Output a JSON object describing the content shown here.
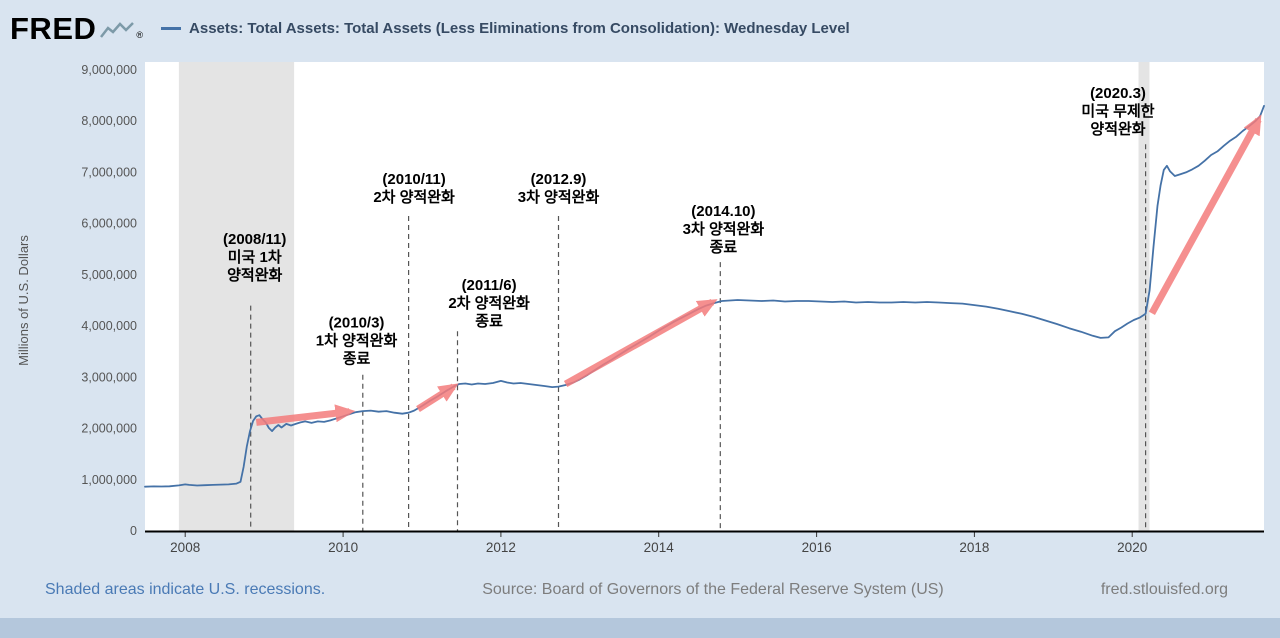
{
  "header": {
    "logo_text": "FRED",
    "registered_mark": "®"
  },
  "footer": {
    "recessions_note": "Shaded areas indicate U.S. recessions.",
    "source": "Source: Board of Governors of the Federal Reserve System (US)",
    "site": "fred.stlouisfed.org"
  },
  "chart_data": {
    "type": "line",
    "title": "",
    "xlabel": "",
    "ylabel": "Millions of U.S. Dollars",
    "x_range": [
      2007.49,
      2021.67
    ],
    "y_range": [
      0,
      9000000
    ],
    "x_ticks": [
      2008,
      2010,
      2012,
      2014,
      2016,
      2018,
      2020
    ],
    "y_ticks": [
      0,
      1000000,
      2000000,
      3000000,
      4000000,
      5000000,
      6000000,
      7000000,
      8000000,
      9000000
    ],
    "grid": false,
    "legend_position": "top",
    "line_color": "#4572a7",
    "recession_color": "#e4e4e4",
    "arrow_color": "#f47c7c",
    "recessions": [
      {
        "start": 2007.92,
        "end": 2009.38
      },
      {
        "start": 2020.08,
        "end": 2020.22
      }
    ],
    "series": [
      {
        "name": "Assets: Total Assets: Total Assets (Less Eliminations from Consolidation): Wednesday Level",
        "points": [
          [
            2007.49,
            865000
          ],
          [
            2007.6,
            870000
          ],
          [
            2007.7,
            868000
          ],
          [
            2007.8,
            873000
          ],
          [
            2007.92,
            890000
          ],
          [
            2008.0,
            910000
          ],
          [
            2008.05,
            900000
          ],
          [
            2008.15,
            888000
          ],
          [
            2008.25,
            895000
          ],
          [
            2008.35,
            900000
          ],
          [
            2008.45,
            905000
          ],
          [
            2008.55,
            910000
          ],
          [
            2008.65,
            925000
          ],
          [
            2008.7,
            960000
          ],
          [
            2008.74,
            1250000
          ],
          [
            2008.78,
            1650000
          ],
          [
            2008.82,
            1950000
          ],
          [
            2008.86,
            2150000
          ],
          [
            2008.9,
            2240000
          ],
          [
            2008.94,
            2260000
          ],
          [
            2008.98,
            2180000
          ],
          [
            2009.02,
            2120000
          ],
          [
            2009.06,
            2010000
          ],
          [
            2009.1,
            1950000
          ],
          [
            2009.14,
            2020000
          ],
          [
            2009.18,
            2070000
          ],
          [
            2009.22,
            2020000
          ],
          [
            2009.28,
            2090000
          ],
          [
            2009.34,
            2060000
          ],
          [
            2009.4,
            2090000
          ],
          [
            2009.46,
            2120000
          ],
          [
            2009.52,
            2140000
          ],
          [
            2009.6,
            2110000
          ],
          [
            2009.68,
            2140000
          ],
          [
            2009.76,
            2130000
          ],
          [
            2009.84,
            2160000
          ],
          [
            2009.92,
            2200000
          ],
          [
            2010.0,
            2240000
          ],
          [
            2010.08,
            2280000
          ],
          [
            2010.16,
            2320000
          ],
          [
            2010.25,
            2340000
          ],
          [
            2010.35,
            2350000
          ],
          [
            2010.45,
            2330000
          ],
          [
            2010.55,
            2340000
          ],
          [
            2010.65,
            2310000
          ],
          [
            2010.75,
            2290000
          ],
          [
            2010.83,
            2310000
          ],
          [
            2010.9,
            2350000
          ],
          [
            2011.0,
            2440000
          ],
          [
            2011.1,
            2540000
          ],
          [
            2011.2,
            2630000
          ],
          [
            2011.3,
            2730000
          ],
          [
            2011.4,
            2820000
          ],
          [
            2011.47,
            2870000
          ],
          [
            2011.55,
            2880000
          ],
          [
            2011.63,
            2860000
          ],
          [
            2011.71,
            2880000
          ],
          [
            2011.8,
            2870000
          ],
          [
            2011.9,
            2890000
          ],
          [
            2012.0,
            2930000
          ],
          [
            2012.08,
            2900000
          ],
          [
            2012.16,
            2880000
          ],
          [
            2012.25,
            2890000
          ],
          [
            2012.35,
            2870000
          ],
          [
            2012.45,
            2850000
          ],
          [
            2012.55,
            2830000
          ],
          [
            2012.65,
            2810000
          ],
          [
            2012.73,
            2820000
          ],
          [
            2012.82,
            2850000
          ],
          [
            2012.92,
            2900000
          ],
          [
            2013.0,
            2960000
          ],
          [
            2013.1,
            3050000
          ],
          [
            2013.2,
            3150000
          ],
          [
            2013.3,
            3250000
          ],
          [
            2013.4,
            3340000
          ],
          [
            2013.5,
            3440000
          ],
          [
            2013.6,
            3540000
          ],
          [
            2013.7,
            3630000
          ],
          [
            2013.8,
            3720000
          ],
          [
            2013.9,
            3810000
          ],
          [
            2014.0,
            3910000
          ],
          [
            2014.1,
            4000000
          ],
          [
            2014.2,
            4090000
          ],
          [
            2014.3,
            4170000
          ],
          [
            2014.4,
            4250000
          ],
          [
            2014.5,
            4330000
          ],
          [
            2014.6,
            4400000
          ],
          [
            2014.7,
            4450000
          ],
          [
            2014.8,
            4490000
          ],
          [
            2014.9,
            4500000
          ],
          [
            2015.0,
            4510000
          ],
          [
            2015.15,
            4500000
          ],
          [
            2015.3,
            4490000
          ],
          [
            2015.45,
            4500000
          ],
          [
            2015.6,
            4480000
          ],
          [
            2015.75,
            4490000
          ],
          [
            2015.9,
            4490000
          ],
          [
            2016.05,
            4480000
          ],
          [
            2016.2,
            4470000
          ],
          [
            2016.35,
            4480000
          ],
          [
            2016.5,
            4460000
          ],
          [
            2016.65,
            4470000
          ],
          [
            2016.8,
            4460000
          ],
          [
            2016.95,
            4460000
          ],
          [
            2017.1,
            4470000
          ],
          [
            2017.25,
            4460000
          ],
          [
            2017.4,
            4470000
          ],
          [
            2017.55,
            4460000
          ],
          [
            2017.7,
            4450000
          ],
          [
            2017.85,
            4440000
          ],
          [
            2018.0,
            4410000
          ],
          [
            2018.15,
            4380000
          ],
          [
            2018.3,
            4340000
          ],
          [
            2018.45,
            4290000
          ],
          [
            2018.6,
            4240000
          ],
          [
            2018.75,
            4180000
          ],
          [
            2018.9,
            4110000
          ],
          [
            2019.05,
            4040000
          ],
          [
            2019.2,
            3960000
          ],
          [
            2019.35,
            3890000
          ],
          [
            2019.5,
            3810000
          ],
          [
            2019.6,
            3770000
          ],
          [
            2019.7,
            3780000
          ],
          [
            2019.78,
            3900000
          ],
          [
            2019.86,
            3970000
          ],
          [
            2019.94,
            4050000
          ],
          [
            2020.02,
            4120000
          ],
          [
            2020.1,
            4170000
          ],
          [
            2020.17,
            4240000
          ],
          [
            2020.22,
            4700000
          ],
          [
            2020.27,
            5550000
          ],
          [
            2020.32,
            6350000
          ],
          [
            2020.36,
            6750000
          ],
          [
            2020.4,
            7050000
          ],
          [
            2020.44,
            7130000
          ],
          [
            2020.48,
            7020000
          ],
          [
            2020.54,
            6930000
          ],
          [
            2020.6,
            6960000
          ],
          [
            2020.68,
            7000000
          ],
          [
            2020.76,
            7060000
          ],
          [
            2020.84,
            7130000
          ],
          [
            2020.92,
            7230000
          ],
          [
            2021.0,
            7340000
          ],
          [
            2021.08,
            7410000
          ],
          [
            2021.16,
            7520000
          ],
          [
            2021.24,
            7620000
          ],
          [
            2021.32,
            7700000
          ],
          [
            2021.4,
            7810000
          ],
          [
            2021.48,
            7900000
          ],
          [
            2021.56,
            8000000
          ],
          [
            2021.62,
            8100000
          ],
          [
            2021.67,
            8300000
          ]
        ]
      }
    ],
    "annotations": [
      {
        "line_x": 2008.83,
        "line_top": 4400000,
        "text_x": 2008.88,
        "text_y": 5350000,
        "lines": [
          "(2008/11)",
          "미국 1차",
          "양적완화"
        ]
      },
      {
        "line_x": 2010.25,
        "line_top": 3050000,
        "text_x": 2010.17,
        "text_y": 3720000,
        "lines": [
          "(2010/3)",
          "1차 양적완화",
          "종료"
        ]
      },
      {
        "line_x": 2010.83,
        "line_top": 6150000,
        "text_x": 2010.9,
        "text_y": 6700000,
        "lines": [
          "(2010/11)",
          "2차 양적완화"
        ]
      },
      {
        "line_x": 2011.45,
        "line_top": 3900000,
        "text_x": 2011.85,
        "text_y": 4450000,
        "lines": [
          "(2011/6)",
          "2차 양적완화",
          "종료"
        ]
      },
      {
        "line_x": 2012.73,
        "line_top": 6150000,
        "text_x": 2012.73,
        "text_y": 6700000,
        "lines": [
          "(2012.9)",
          "3차 양적완화"
        ]
      },
      {
        "line_x": 2014.78,
        "line_top": 5250000,
        "text_x": 2014.82,
        "text_y": 5900000,
        "lines": [
          "(2014.10)",
          "3차 양적완화",
          "종료"
        ]
      },
      {
        "line_x": 2020.17,
        "line_top": 7550000,
        "text_x": 2019.82,
        "text_y": 8200000,
        "lines": [
          "(2020.3)",
          "미국 무제한",
          "양적완화"
        ]
      }
    ],
    "arrows": [
      {
        "x1": 2008.9,
        "y1": 2120000,
        "x2": 2010.08,
        "y2": 2330000
      },
      {
        "x1": 2010.95,
        "y1": 2380000,
        "x2": 2011.4,
        "y2": 2820000
      },
      {
        "x1": 2012.82,
        "y1": 2870000,
        "x2": 2014.68,
        "y2": 4470000
      },
      {
        "x1": 2020.25,
        "y1": 4250000,
        "x2": 2021.6,
        "y2": 8030000
      }
    ]
  }
}
